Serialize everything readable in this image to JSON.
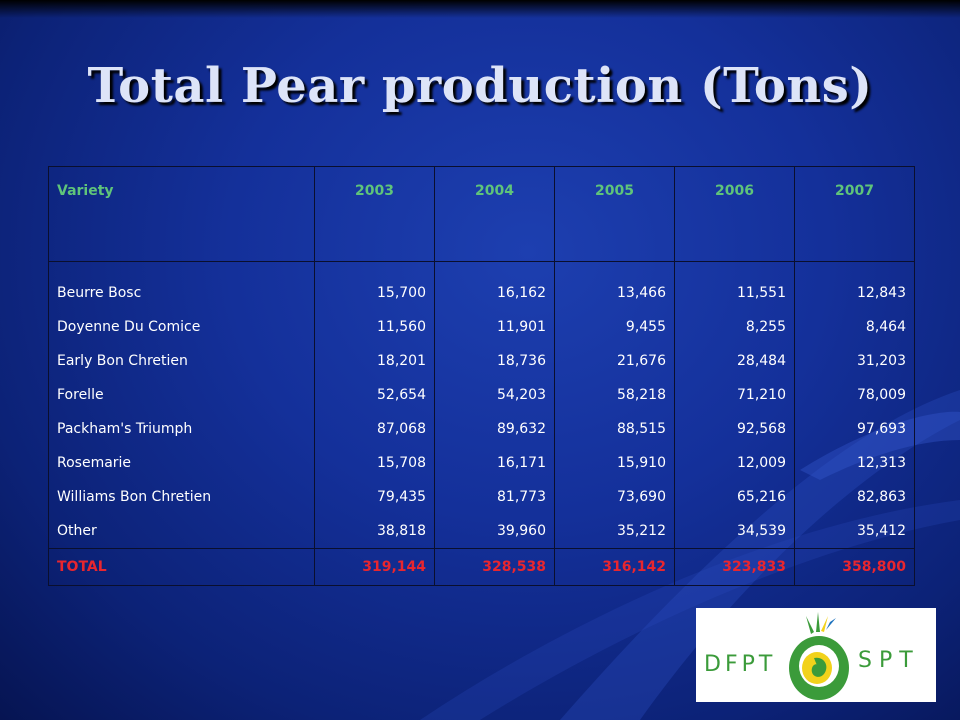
{
  "slide": {
    "title": "Total Pear production (Tons)"
  },
  "table": {
    "headers": [
      "Variety",
      "2003",
      "2004",
      "2005",
      "2006",
      "2007"
    ],
    "rows": [
      {
        "variety": "Beurre Bosc",
        "values": [
          "15,700",
          "16,162",
          "13,466",
          "11,551",
          "12,843"
        ]
      },
      {
        "variety": "Doyenne Du Comice",
        "values": [
          "11,560",
          "11,901",
          "9,455",
          "8,255",
          "8,464"
        ]
      },
      {
        "variety": "Early Bon Chretien",
        "values": [
          "18,201",
          "18,736",
          "21,676",
          "28,484",
          "31,203"
        ]
      },
      {
        "variety": "Forelle",
        "values": [
          "52,654",
          "54,203",
          "58,218",
          "71,210",
          "78,009"
        ]
      },
      {
        "variety": "Packham's Triumph",
        "values": [
          "87,068",
          "89,632",
          "88,515",
          "92,568",
          "97,693"
        ]
      },
      {
        "variety": "Rosemarie",
        "values": [
          "15,708",
          "16,171",
          "15,910",
          "12,009",
          "12,313"
        ]
      },
      {
        "variety": "Williams Bon Chretien",
        "values": [
          "79,435",
          "81,773",
          "73,690",
          "65,216",
          "82,863"
        ]
      },
      {
        "variety": "Other",
        "values": [
          "38,818",
          "39,960",
          "35,212",
          "34,539",
          "35,412"
        ]
      }
    ],
    "total": {
      "label": "TOTAL",
      "values": [
        "319,144",
        "328,538",
        "316,142",
        "323,833",
        "358,800"
      ]
    }
  },
  "logo": {
    "left_text": "DFPT",
    "right_text": "SPT",
    "colors": {
      "green": "#3b9b3a",
      "yellow": "#f2d21b",
      "blue": "#1e73be"
    }
  },
  "colors": {
    "background": "#14309a",
    "header_text": "#5fc47a",
    "total_text": "#e8262f",
    "body_text": "#ffffff",
    "title_text": "#dde4f8"
  }
}
